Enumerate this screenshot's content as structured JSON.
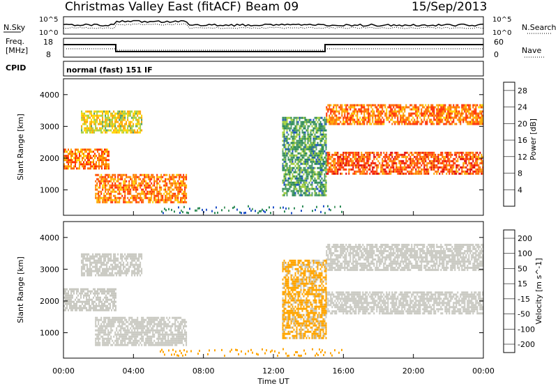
{
  "header": {
    "title": "Christmas Valley East (fitACF)",
    "beam": "Beam 09",
    "date": "15/Sep/2013"
  },
  "panels": {
    "nsky": {
      "label": "N.Sky",
      "right_label": "N.Search",
      "tick_top": "10^5",
      "tick_bottom": "10^0"
    },
    "freq": {
      "label_line1": "Freq.",
      "label_line2": "[MHz]",
      "left_ticks": [
        "18",
        "8"
      ],
      "right_ticks": [
        "60",
        "0"
      ],
      "right_label": "Nave"
    },
    "cpid": {
      "label": "CPID",
      "value": "normal (fast) 151 IF"
    }
  },
  "colors": {
    "power_scale": [
      "#0000ff",
      "#1e50c8",
      "#2e8b57",
      "#4f9c6a",
      "#a5d040",
      "#ffd700",
      "#ffa500",
      "#ff6a00",
      "#ff2d00",
      "#e00000"
    ],
    "velocity_scale": [
      "#2040c0",
      "#3060b0",
      "#2e8b57",
      "#7ccd3c",
      "#c8c8c0",
      "#c8c8c0",
      "#ffa500",
      "#ff6a00",
      "#ff2d00",
      "#e00000"
    ]
  },
  "chart_data": [
    {
      "type": "heatmap",
      "title": "",
      "xlabel": "Time UT",
      "ylabel": "Slant Range [km]",
      "x_ticks": [
        "00:00",
        "04:00",
        "08:00",
        "12:00",
        "16:00",
        "20:00",
        "00:00"
      ],
      "y_ticks": [
        "1000",
        "2000",
        "3000",
        "4000"
      ],
      "ylim": [
        200,
        4500
      ],
      "colorbar": {
        "label": "Power [dB]",
        "ticks": [
          "4",
          "8",
          "12",
          "16",
          "20",
          "24",
          "28"
        ],
        "range": [
          0,
          30
        ]
      },
      "series": [
        {
          "name": "",
          "x_start_h": 1.8,
          "x_end_h": 7.0,
          "y_start": 600,
          "y_end": 1500,
          "value": 22
        },
        {
          "name": "",
          "x_start_h": 0.0,
          "x_end_h": 2.6,
          "y_start": 1700,
          "y_end": 2300,
          "value": 22
        },
        {
          "name": "",
          "x_start_h": 1.0,
          "x_end_h": 4.5,
          "y_start": 2800,
          "y_end": 3500,
          "value": 16
        },
        {
          "name": "",
          "x_start_h": 15.0,
          "x_end_h": 24.0,
          "y_start": 1500,
          "y_end": 2200,
          "value": 24
        },
        {
          "name": "",
          "x_start_h": 15.0,
          "x_end_h": 24.0,
          "y_start": 3100,
          "y_end": 3700,
          "value": 22
        },
        {
          "name": "",
          "x_start_h": 12.5,
          "x_end_h": 15.0,
          "y_start": 800,
          "y_end": 3300,
          "value": 10
        }
      ]
    },
    {
      "type": "heatmap",
      "title": "",
      "xlabel": "Time UT",
      "ylabel": "Slant Range [km]",
      "x_ticks": [
        "00:00",
        "04:00",
        "08:00",
        "12:00",
        "16:00",
        "20:00",
        "00:00"
      ],
      "y_ticks": [
        "1000",
        "2000",
        "3000",
        "4000"
      ],
      "ylim": [
        200,
        4500
      ],
      "colorbar": {
        "label": "Velocity [m s^-1]",
        "ticks": [
          "200",
          "100",
          "50",
          "15",
          "-15",
          "-50",
          "-100",
          "-200"
        ],
        "range": [
          -250,
          250
        ]
      },
      "series": [
        {
          "name": "",
          "x_start_h": 1.8,
          "x_end_h": 7.0,
          "y_start": 600,
          "y_end": 1500,
          "value": -20
        },
        {
          "name": "",
          "x_start_h": 0.0,
          "x_end_h": 3.0,
          "y_start": 1700,
          "y_end": 2400,
          "value": 0
        },
        {
          "name": "",
          "x_start_h": 1.0,
          "x_end_h": 4.5,
          "y_start": 2800,
          "y_end": 3500,
          "value": 0
        },
        {
          "name": "",
          "x_start_h": 15.0,
          "x_end_h": 24.0,
          "y_start": 1600,
          "y_end": 2300,
          "value": 0
        },
        {
          "name": "",
          "x_start_h": 15.0,
          "x_end_h": 24.0,
          "y_start": 3000,
          "y_end": 3800,
          "value": 0
        },
        {
          "name": "",
          "x_start_h": 12.5,
          "x_end_h": 15.0,
          "y_start": 800,
          "y_end": 3300,
          "value": 60
        }
      ]
    }
  ]
}
